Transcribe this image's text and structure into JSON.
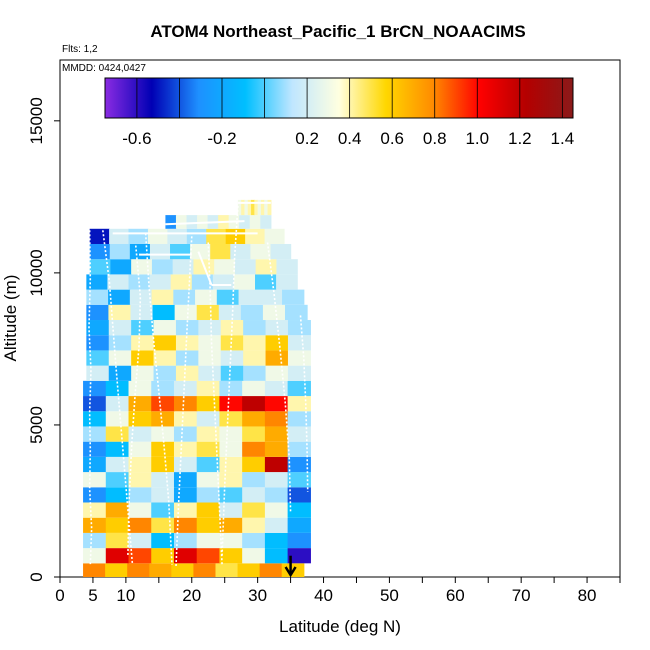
{
  "chart_data": {
    "type": "heatmap",
    "title": "ATOM4 Northeast_Pacific_1 BrCN_NOAACIMS",
    "annotations": [
      "Flts: 1,2",
      "MMDD: 0424,0427"
    ],
    "xlabel": "Latitude (deg N)",
    "ylabel": "Altitude (m)",
    "xlim": [
      0,
      85
    ],
    "ylim": [
      0,
      17000
    ],
    "x_ticks": [
      0,
      5,
      10,
      20,
      30,
      40,
      50,
      60,
      70,
      80
    ],
    "x_tick_labels": [
      "0",
      "5",
      "10",
      "20",
      "30",
      "40",
      "50",
      "60",
      "70",
      "80"
    ],
    "y_ticks": [
      0,
      5000,
      10000,
      15000
    ],
    "y_tick_labels": [
      "0",
      "5000",
      "10000",
      "15000"
    ],
    "colorbar": {
      "position": "top",
      "range": [
        -0.75,
        1.45
      ],
      "ticks": [
        -0.6,
        -0.2,
        0.2,
        0.4,
        0.6,
        0.8,
        1.0,
        1.2,
        1.4
      ],
      "tick_labels": [
        "-0.6",
        "-0.2",
        "0.2",
        "0.4",
        "0.6",
        "0.8",
        "1.0",
        "1.2",
        "1.4"
      ],
      "colors": [
        "#8a2be2",
        "#0000b4",
        "#1e90ff",
        "#00bfff",
        "#bfe6ff",
        "#ffffe0",
        "#ffd700",
        "#ff8c00",
        "#ff0000",
        "#b40000",
        "#8b1a1a"
      ]
    },
    "marker": {
      "type": "arrow",
      "x": 35,
      "y_from": 700,
      "y_to": 0
    },
    "bands": [
      {
        "y0": 0,
        "y1": 450,
        "x0": 3.5,
        "x1": 37,
        "values": [
          0.8,
          0.6,
          0.8,
          0.7,
          0.6,
          0.8,
          0.5,
          0.6,
          0.8,
          0.6
        ]
      },
      {
        "y0": 450,
        "y1": 950,
        "x0": 3.5,
        "x1": 38,
        "values": [
          0.3,
          1.1,
          0.9,
          0.6,
          1.1,
          0.9,
          0.6,
          0.3,
          -0.1,
          -0.6
        ]
      },
      {
        "y0": 950,
        "y1": 1450,
        "x0": 3.5,
        "x1": 38,
        "values": [
          0.1,
          0.5,
          0.2,
          -0.1,
          0.1,
          0.3,
          0.3,
          0.1,
          -0.1,
          -0.3
        ]
      },
      {
        "y0": 1450,
        "y1": 1950,
        "x0": 3.5,
        "x1": 38,
        "values": [
          0.7,
          0.6,
          0.8,
          0.5,
          0.8,
          0.6,
          0.7,
          0.4,
          0.2,
          -0.2
        ]
      },
      {
        "y0": 1950,
        "y1": 2450,
        "x0": 3.5,
        "x1": 38,
        "values": [
          0.4,
          0.7,
          0.3,
          0.0,
          0.4,
          0.6,
          0.2,
          0.5,
          0.3,
          -0.1
        ]
      },
      {
        "y0": 2450,
        "y1": 2950,
        "x0": 3.5,
        "x1": 38,
        "values": [
          -0.3,
          -0.1,
          0.1,
          0.2,
          -0.2,
          0.1,
          0.0,
          0.2,
          0.1,
          -0.4
        ]
      },
      {
        "y0": 2950,
        "y1": 3450,
        "x0": 3.5,
        "x1": 38,
        "values": [
          0.3,
          0.0,
          0.4,
          0.2,
          -0.2,
          0.3,
          0.4,
          0.1,
          0.2,
          0.0
        ]
      },
      {
        "y0": 3450,
        "y1": 3950,
        "x0": 3.5,
        "x1": 38,
        "values": [
          -0.2,
          0.2,
          0.4,
          0.6,
          0.2,
          0.0,
          0.4,
          0.6,
          1.2,
          -0.3
        ]
      },
      {
        "y0": 3950,
        "y1": 4450,
        "x0": 3.5,
        "x1": 38,
        "values": [
          -0.3,
          -0.1,
          0.3,
          0.6,
          0.4,
          0.5,
          0.3,
          0.8,
          0.7,
          0.1
        ]
      },
      {
        "y0": 4450,
        "y1": 4950,
        "x0": 3.5,
        "x1": 38,
        "values": [
          0.1,
          0.5,
          0.2,
          0.3,
          0.1,
          0.4,
          0.3,
          0.5,
          0.7,
          0.2
        ]
      },
      {
        "y0": 4950,
        "y1": 5450,
        "x0": 3.5,
        "x1": 38,
        "values": [
          -0.1,
          0.3,
          0.6,
          0.7,
          0.4,
          0.2,
          0.5,
          0.7,
          0.8,
          0.1
        ]
      },
      {
        "y0": 5450,
        "y1": 5950,
        "x0": 3.5,
        "x1": 38,
        "values": [
          -0.4,
          0.2,
          0.7,
          0.9,
          0.8,
          0.6,
          1.0,
          1.2,
          1.0,
          0.4
        ]
      },
      {
        "y0": 5950,
        "y1": 6450,
        "x0": 3.5,
        "x1": 38,
        "values": [
          -0.3,
          -0.1,
          0.3,
          0.1,
          0.2,
          0.4,
          0.1,
          0.3,
          0.2,
          0.0
        ]
      },
      {
        "y0": 6450,
        "y1": 6950,
        "x0": 4,
        "x1": 38,
        "values": [
          0.2,
          -0.2,
          0.3,
          0.1,
          0.4,
          0.2,
          0.0,
          0.1,
          0.3,
          0.2
        ]
      },
      {
        "y0": 6950,
        "y1": 7450,
        "x0": 4,
        "x1": 38,
        "values": [
          0.0,
          0.3,
          0.6,
          0.4,
          0.1,
          0.3,
          0.2,
          0.4,
          0.7,
          0.3
        ]
      },
      {
        "y0": 7450,
        "y1": 7950,
        "x0": 4,
        "x1": 38,
        "values": [
          -0.3,
          0.1,
          0.4,
          0.6,
          0.4,
          0.3,
          0.5,
          0.4,
          0.6,
          0.2
        ]
      },
      {
        "y0": 7950,
        "y1": 8450,
        "x0": 4,
        "x1": 38,
        "values": [
          -0.2,
          0.2,
          0.0,
          0.3,
          0.1,
          0.2,
          0.4,
          0.1,
          0.2,
          0.1
        ]
      },
      {
        "y0": 8450,
        "y1": 8950,
        "x0": 4,
        "x1": 37.5,
        "values": [
          -0.3,
          0.4,
          0.2,
          -0.1,
          0.3,
          0.5,
          0.2,
          0.1,
          0.3,
          0.1
        ]
      },
      {
        "y0": 8950,
        "y1": 9450,
        "x0": 4,
        "x1": 37,
        "values": [
          0.1,
          -0.2,
          0.2,
          0.4,
          0.1,
          0.3,
          0.0,
          0.2,
          0.2,
          0.1
        ]
      },
      {
        "y0": 9450,
        "y1": 9950,
        "x0": 4,
        "x1": 36,
        "values": [
          -0.2,
          0.2,
          0.1,
          0.2,
          0.4,
          0.1,
          0.2,
          0.3,
          0.0,
          0.2
        ]
      },
      {
        "y0": 9950,
        "y1": 10450,
        "x0": 4.5,
        "x1": 36,
        "values": [
          0.0,
          -0.2,
          0.3,
          0.1,
          0.2,
          0.4,
          0.3,
          0.2,
          0.4,
          0.2
        ]
      },
      {
        "y0": 10450,
        "y1": 10950,
        "x0": 4.5,
        "x1": 35,
        "values": [
          -0.3,
          0.1,
          -0.2,
          0.2,
          0.0,
          0.3,
          0.5,
          0.2,
          0.3,
          0.2
        ]
      },
      {
        "y0": 10950,
        "y1": 11450,
        "x0": 4.5,
        "x1": 34,
        "values": [
          -0.5,
          0.2,
          0.1,
          0.3,
          0.2,
          0.1,
          0.5,
          0.6,
          0.4,
          0.3
        ]
      },
      {
        "y0": 11450,
        "y1": 11900,
        "x0": 16,
        "x1": 32,
        "values": [
          -0.3,
          0.3,
          0.2,
          0.3,
          0.2,
          0.4,
          0.3,
          0.2,
          0.3,
          0.2
        ]
      },
      {
        "y0": 11900,
        "y1": 12400,
        "x0": 27,
        "x1": 32,
        "values": [
          0.3,
          0.4,
          0.3,
          0.4,
          0.5,
          0.4,
          0.3,
          0.4,
          0.3,
          0.4
        ]
      }
    ],
    "flight_tracks": [
      {
        "x": [
          4.5,
          4.6,
          4.4,
          4.7,
          4.5,
          4.6,
          4.5,
          4.8,
          4.6
        ],
        "y": [
          11400,
          9800,
          8200,
          6800,
          5400,
          4200,
          2900,
          1600,
          400
        ]
      },
      {
        "x": [
          6.5,
          7.5,
          8.0,
          8.5,
          9.0,
          9.5,
          10.0,
          10.5,
          11.0
        ],
        "y": [
          11400,
          9700,
          8300,
          6900,
          5600,
          4300,
          3000,
          1700,
          400
        ]
      },
      {
        "x": [
          11.5,
          12.2,
          12.0,
          11.4,
          10.9,
          10.5,
          10.3
        ],
        "y": [
          10900,
          9200,
          7600,
          6000,
          4400,
          2600,
          700
        ]
      },
      {
        "x": [
          13.0,
          13.5,
          14.2,
          15.0,
          15.8,
          16.5,
          17.0
        ],
        "y": [
          11300,
          9600,
          7800,
          6100,
          4300,
          2500,
          400
        ]
      },
      {
        "x": [
          20.0,
          19.6,
          19.2,
          18.8,
          18.4,
          18.0,
          17.6
        ],
        "y": [
          11200,
          9500,
          7800,
          6000,
          4200,
          2400,
          300
        ]
      },
      {
        "x": [
          22.5,
          22.8,
          23.0,
          23.4,
          23.8,
          24.2,
          24.6
        ],
        "y": [
          11000,
          9400,
          7700,
          5900,
          4100,
          2300,
          400
        ]
      },
      {
        "x": [
          27.0,
          26.5,
          26.2,
          25.8,
          25.4,
          25.0,
          24.6
        ],
        "y": [
          12200,
          10500,
          8700,
          6800,
          4900,
          3000,
          700
        ]
      },
      {
        "x": [
          31.5,
          32.5,
          33.4,
          34.2,
          34.8,
          35.0
        ],
        "y": [
          11000,
          9300,
          7500,
          5700,
          3900,
          2100
        ]
      },
      {
        "x": [
          36.5,
          37.0,
          37.3,
          37.5,
          37.6
        ],
        "y": [
          8600,
          7200,
          5700,
          4200,
          2800
        ]
      }
    ],
    "track_segments": [
      {
        "x": [
          12,
          20
        ],
        "y": [
          10600,
          10600
        ]
      },
      {
        "x": [
          21,
          23
        ],
        "y": [
          10700,
          9600
        ]
      },
      {
        "x": [
          23,
          26
        ],
        "y": [
          9600,
          9600
        ]
      },
      {
        "x": [
          16,
          28
        ],
        "y": [
          11600,
          11700
        ]
      },
      {
        "x": [
          27,
          32
        ],
        "y": [
          12300,
          12300
        ]
      },
      {
        "x": [
          8,
          30
        ],
        "y": [
          11300,
          11300
        ]
      }
    ]
  }
}
